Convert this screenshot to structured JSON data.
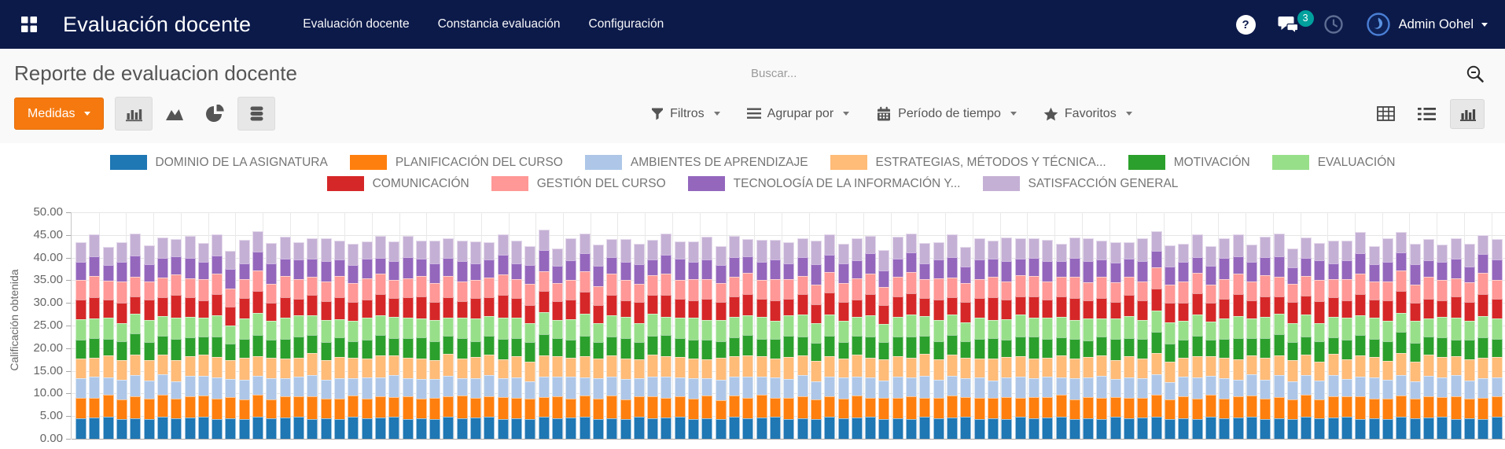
{
  "navbar": {
    "app_title": "Evaluación docente",
    "menu_items": [
      {
        "label": "Evaluación docente"
      },
      {
        "label": "Constancia evaluación"
      },
      {
        "label": "Configuración"
      }
    ],
    "help_glyph": "?",
    "messages_badge": "3",
    "user_name": "Admin Oohel"
  },
  "control_panel": {
    "page_title": "Reporte de evaluacion docente",
    "search_placeholder": "Buscar...",
    "measures_label": "Medidas",
    "filters_label": "Filtros",
    "group_by_label": "Agrupar por",
    "time_range_label": "Período de tiempo",
    "favorites_label": "Favoritos"
  },
  "chart_data": {
    "type": "bar",
    "stacked": true,
    "ylabel": "Calificación obtenida",
    "ylim": [
      0,
      50
    ],
    "yticks": [
      "50.00",
      "45.00",
      "40.00",
      "35.00",
      "30.00",
      "25.00",
      "20.00",
      "15.00",
      "10.00",
      "5.00",
      "0.00"
    ],
    "grid": true,
    "legend_position": "top",
    "bar_count": 105,
    "note": "Per-bar segment values are tiled from each series pattern (values in points out of 50, approx. 4-5 per criterion, bar totals ~40-49).",
    "series": [
      {
        "label": "DOMINIO DE LA ASIGNATURA",
        "color": "#1f77b4",
        "pattern": [
          4.5,
          4.7,
          4.8,
          4.4,
          4.6,
          4.3,
          4.8
        ]
      },
      {
        "label": "PLANIFICACIÓN DEL CURSO",
        "color": "#ff7f0e",
        "pattern": [
          4.6,
          4.4,
          4.9,
          4.2,
          4.7,
          4.5,
          5.0,
          4.3,
          4.6,
          4.8,
          4.4
        ]
      },
      {
        "label": "AMBIENTES DE APRENDIZAJE",
        "color": "#aec7e8",
        "pattern": [
          4.2,
          4.6,
          3.9,
          4.4,
          4.7,
          4.1,
          4.5,
          3.8,
          4.6,
          4.3,
          4.8,
          4.0,
          4.4
        ]
      },
      {
        "label": "ESTRATEGIAS, MÉTODOS Y TÉCNICA...",
        "color": "#ffbb78",
        "pattern": [
          4.5,
          4.2,
          4.8,
          4.4,
          4.6
        ]
      },
      {
        "label": "MOTIVACIÓN",
        "color": "#2ca02c",
        "pattern": [
          4.0,
          4.4,
          3.6,
          4.2,
          4.6,
          3.9,
          4.3,
          4.7,
          4.1
        ]
      },
      {
        "label": "EVALUACIÓN",
        "color": "#98df8a",
        "pattern": [
          4.6,
          4.2,
          4.8,
          4.0,
          4.5,
          4.9,
          4.3,
          4.7
        ]
      },
      {
        "label": "COMUNICACIÓN",
        "color": "#d62728",
        "pattern": [
          4.4,
          4.8,
          4.0,
          4.5,
          3.7,
          4.6,
          4.2,
          4.9,
          4.3,
          3.9,
          4.7,
          4.1
        ]
      },
      {
        "label": "GESTIÓN DEL CURSO",
        "color": "#ff9896",
        "pattern": [
          4.3,
          4.6,
          4.1,
          4.7,
          4.4,
          4.0
        ]
      },
      {
        "label": "TECNOLOGÍA DE LA INFORMACIÓN Y...",
        "color": "#9467bd",
        "pattern": [
          4.0,
          4.4,
          3.5,
          4.2,
          4.6,
          3.8,
          4.3,
          4.0,
          4.5,
          3.7
        ]
      },
      {
        "label": "SATISFACCIÓN GENERAL",
        "color": "#c5b0d5",
        "pattern": [
          4.4,
          4.8,
          3.9,
          4.5,
          5.0,
          4.2,
          4.6,
          3.8,
          4.9,
          4.3,
          4.7,
          4.0,
          5.1,
          4.4
        ]
      }
    ],
    "legend_rows": [
      [
        0,
        1,
        2,
        3,
        4,
        5
      ],
      [
        6,
        7,
        8,
        9
      ]
    ]
  }
}
